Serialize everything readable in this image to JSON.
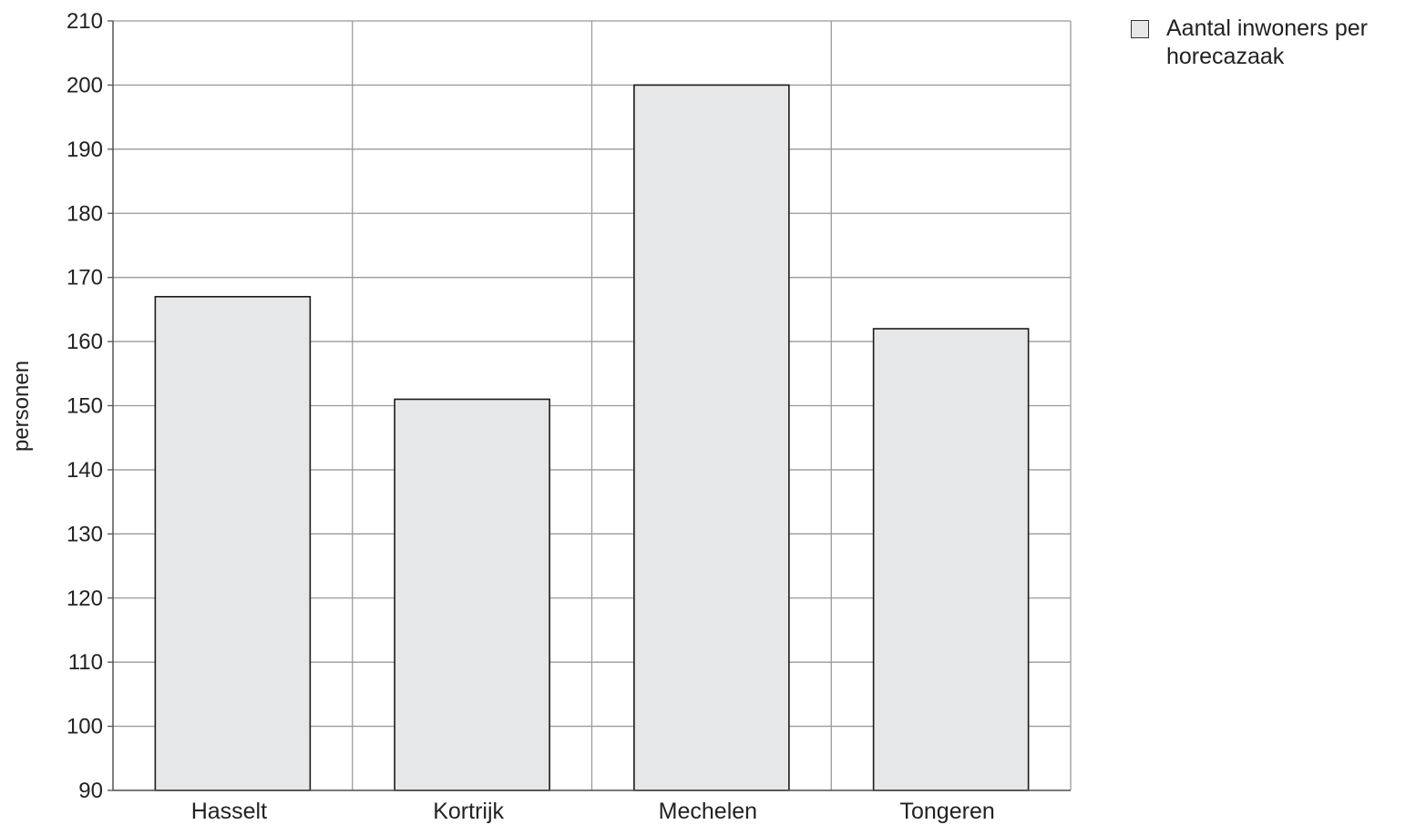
{
  "chart_data": {
    "type": "bar",
    "categories": [
      "Hasselt",
      "Kortrijk",
      "Mechelen",
      "Tongeren"
    ],
    "series": [
      {
        "name": "Aantal inwoners per horecazaak",
        "values": [
          167,
          151,
          200,
          162
        ]
      }
    ],
    "xlabel": "",
    "ylabel": "personen",
    "ylim": [
      90,
      210
    ],
    "yticks": [
      90,
      100,
      110,
      120,
      130,
      140,
      150,
      160,
      170,
      180,
      190,
      200,
      210
    ],
    "grid": true,
    "legend_position": "top-right",
    "colors": {
      "bar_fill": "#e6e7e8",
      "bar_stroke": "#1a1a1a",
      "grid": "#9a9a9a",
      "axis": "#555555"
    }
  }
}
